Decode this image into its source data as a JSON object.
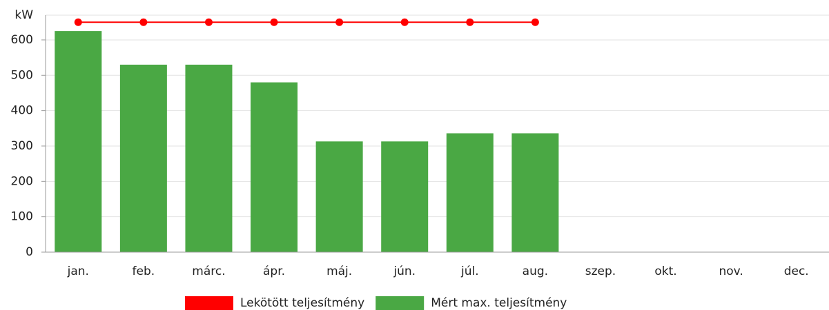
{
  "chart_data": {
    "type": "bar",
    "ylabel": "kW",
    "categories": [
      "jan.",
      "feb.",
      "márc.",
      "ápr.",
      "máj.",
      "jún.",
      "júl.",
      "aug.",
      "szep.",
      "okt.",
      "nov.",
      "dec."
    ],
    "series": [
      {
        "name": "Lekötött teljesítmény",
        "type": "line",
        "color": "#ff0000",
        "values": [
          650,
          650,
          650,
          650,
          650,
          650,
          650,
          650,
          null,
          null,
          null,
          null
        ]
      },
      {
        "name": "Mért max. teljesítmény",
        "type": "bar",
        "color": "#4aa844",
        "values": [
          625,
          530,
          530,
          480,
          313,
          313,
          336,
          336,
          null,
          null,
          null,
          null
        ]
      }
    ],
    "ylim": [
      0,
      670
    ],
    "yticks": [
      0,
      100,
      200,
      300,
      400,
      500,
      600
    ],
    "grid": true
  }
}
